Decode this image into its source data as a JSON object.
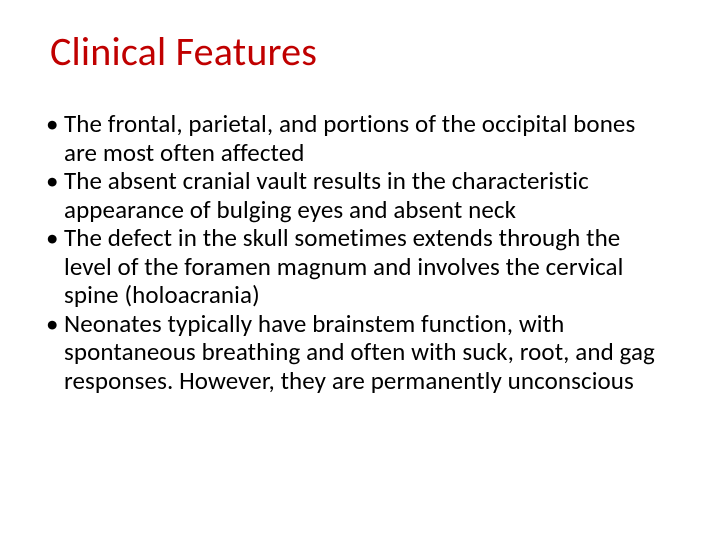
{
  "slide": {
    "title": "Clinical Features",
    "title_color": "#c00000",
    "title_fontsize": 40,
    "body_fontsize": 25,
    "body_color": "#000000",
    "background_color": "#ffffff",
    "bullets": [
      "The frontal, parietal, and portions of the occipital bones are most often affected",
      "The absent cranial vault results in the characteristic appearance of bulging eyes and absent neck",
      "The defect in the skull sometimes extends through the level of the foramen magnum and involves the cervical spine (holoacrania)",
      "Neonates typically have brainstem function, with spontaneous breathing and often with suck, root, and gag responses. However, they are permanently unconscious"
    ]
  }
}
